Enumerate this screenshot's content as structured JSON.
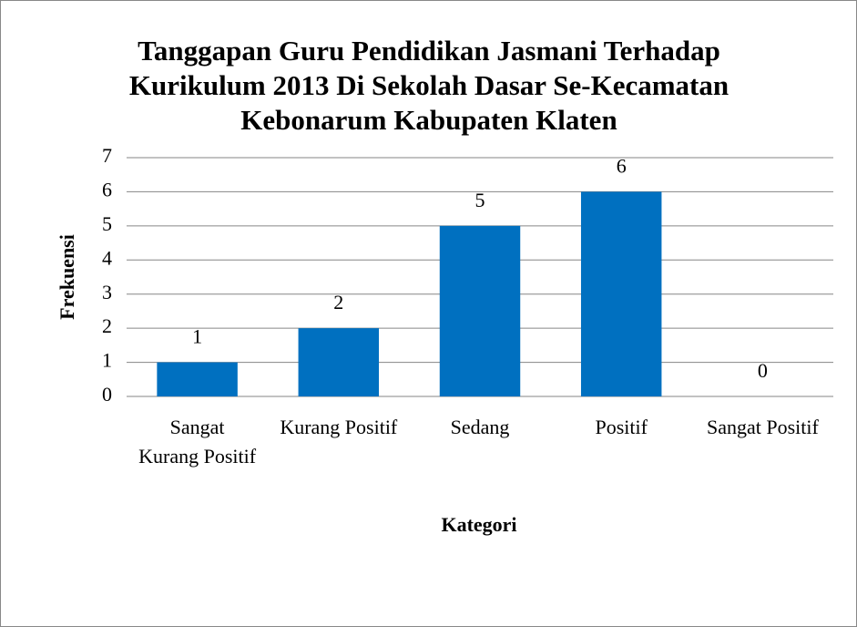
{
  "chart_data": {
    "type": "bar",
    "title": "Tanggapan Guru Pendidikan Jasmani Terhadap Kurikulum 2013 Di Sekolah Dasar Se-Kecamatan Kebonarum Kabupaten Klaten",
    "x_label": "Kategori",
    "y_label": "Frekuensi",
    "categories": [
      "Sangat Kurang Positif",
      "Kurang Positif",
      "Sedang",
      "Positif",
      "Sangat Positif"
    ],
    "values": [
      1,
      2,
      5,
      6,
      0
    ],
    "color": "#0070c0",
    "ylim": [
      0,
      7
    ],
    "yticks": [
      0,
      1,
      2,
      3,
      4,
      5,
      6,
      7
    ],
    "grid": true
  }
}
